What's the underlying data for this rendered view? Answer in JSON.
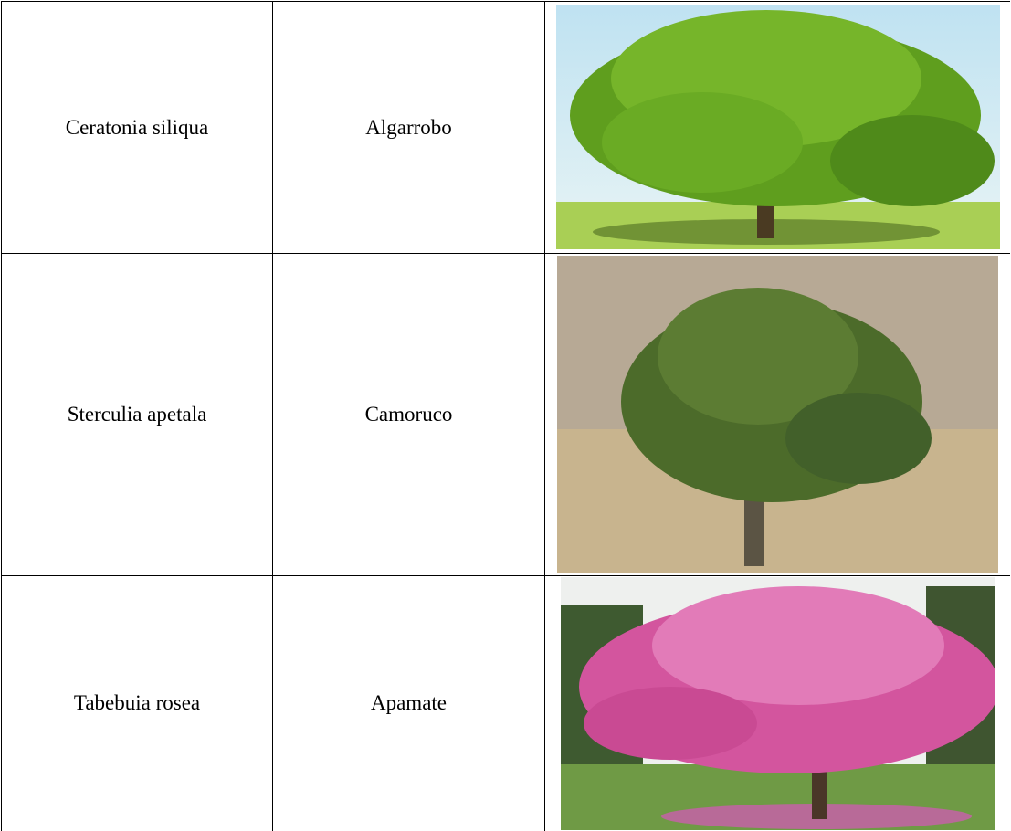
{
  "table": {
    "rows": [
      [
        "Ceratonia siliqua",
        "Algarrobo"
      ],
      [
        "Sterculia apetala",
        "Camoruco"
      ],
      [
        "Tabebuia rosea",
        "Apamate"
      ]
    ]
  }
}
